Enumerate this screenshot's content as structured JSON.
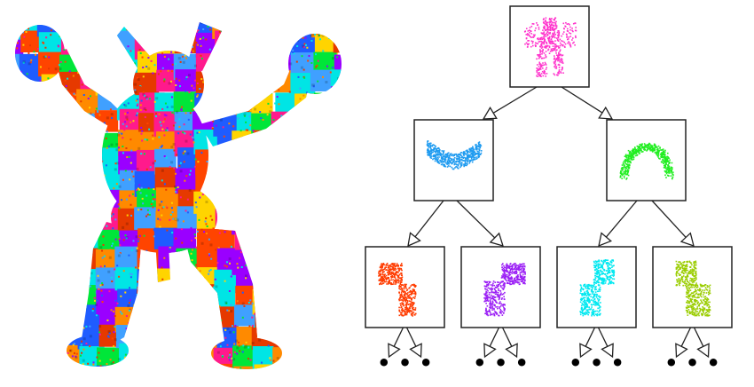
{
  "figure": {
    "left_panel": {
      "subject": "armadillo-model",
      "palette": [
        "#ff1a8c",
        "#00e639",
        "#1f5cff",
        "#ffd400",
        "#00e5e5",
        "#ff4400",
        "#9a00ff",
        "#40a0ff",
        "#ff8a00",
        "#e63900"
      ]
    },
    "hierarchy": {
      "root": {
        "color": "#ff33cc",
        "shape": "whole-body"
      },
      "level1": [
        {
          "color": "#1f9bf0",
          "shape": "upper-body"
        },
        {
          "color": "#22ee22",
          "shape": "legs"
        }
      ],
      "level2": [
        {
          "color": "#ff3c00",
          "shape": "arm-left"
        },
        {
          "color": "#9b1ff5",
          "shape": "arm-right"
        },
        {
          "color": "#00e8f0",
          "shape": "leg-left"
        },
        {
          "color": "#9acd00",
          "shape": "leg-right"
        }
      ],
      "continuation": "• • •"
    }
  }
}
